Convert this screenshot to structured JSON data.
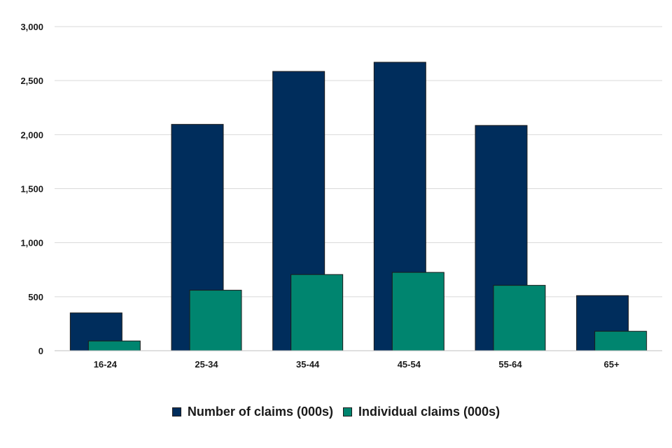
{
  "chart_data": {
    "type": "bar",
    "title": "",
    "xlabel": "",
    "ylabel": "",
    "categories": [
      "16-24",
      "25-34",
      "35-44",
      "45-54",
      "55-64",
      "65+"
    ],
    "series": [
      {
        "name": "Number of claims (000s)",
        "color": "#002d5c",
        "values": [
          350,
          2095,
          2585,
          2670,
          2085,
          510
        ]
      },
      {
        "name": "Individual claims (000s)",
        "color": "#00856f",
        "values": [
          90,
          560,
          705,
          725,
          605,
          180
        ]
      }
    ],
    "ylim": [
      0,
      3000
    ],
    "yticks": [
      0,
      500,
      1000,
      1500,
      2000,
      2500,
      3000
    ],
    "ytick_labels": [
      "0",
      "500",
      "1,000",
      "1,500",
      "2,000",
      "2,500",
      "3,000"
    ],
    "grid": true,
    "legend_position": "bottom"
  }
}
